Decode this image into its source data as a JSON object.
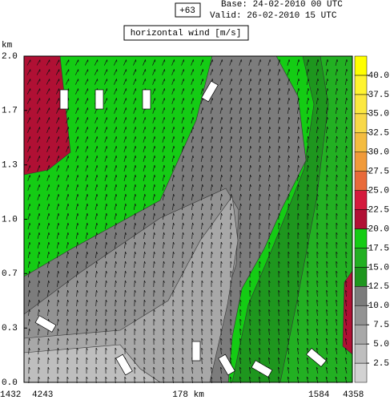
{
  "header": {
    "step": "+63",
    "base": "Base: 24-02-2010  00 UTC",
    "valid": "Valid: 26-02-2010  15 UTC"
  },
  "chart_data": {
    "type": "contour",
    "title": "horizontal wind [m/s]",
    "y_label": "km",
    "ylim": [
      0,
      2
    ],
    "yticks": [
      {
        "value": 0,
        "label": "0.0"
      },
      {
        "value": 0.333,
        "label": "0.3"
      },
      {
        "value": 0.667,
        "label": "0.7"
      },
      {
        "value": 1,
        "label": "1.0"
      },
      {
        "value": 1.333,
        "label": "1.3"
      },
      {
        "value": 1.667,
        "label": "1.7"
      },
      {
        "value": 2,
        "label": "2.0"
      }
    ],
    "x_labels": [
      "1432",
      "4243",
      "178 km",
      "1584",
      "4358"
    ],
    "colorbar": {
      "lim": [
        0,
        42.5
      ],
      "colors": [
        "#d2d2d2",
        "#bebebe",
        "#a8a8a8",
        "#939393",
        "#7c7c7c",
        "#1e961e",
        "#22b022",
        "#14cc14",
        "#b01034",
        "#d41a3c",
        "#e86a3a",
        "#f09a3a",
        "#f4bc40",
        "#f8d848",
        "#fce840",
        "#fff430",
        "#ffff00"
      ],
      "ticks": [
        2.5,
        {
          "value": 5,
          "label": "5.0"
        },
        7.5,
        {
          "value": 10,
          "label": "10.0"
        },
        12.5,
        {
          "value": 15,
          "label": "15.0"
        },
        17.5,
        {
          "value": 20,
          "label": "20.0"
        },
        22.5,
        {
          "value": 25,
          "label": "25.0"
        },
        27.5,
        {
          "value": 30,
          "label": "30.0"
        },
        32.5,
        {
          "value": 35,
          "label": "35.0"
        },
        37.5,
        {
          "value": 40,
          "label": "40.0"
        }
      ]
    }
  }
}
